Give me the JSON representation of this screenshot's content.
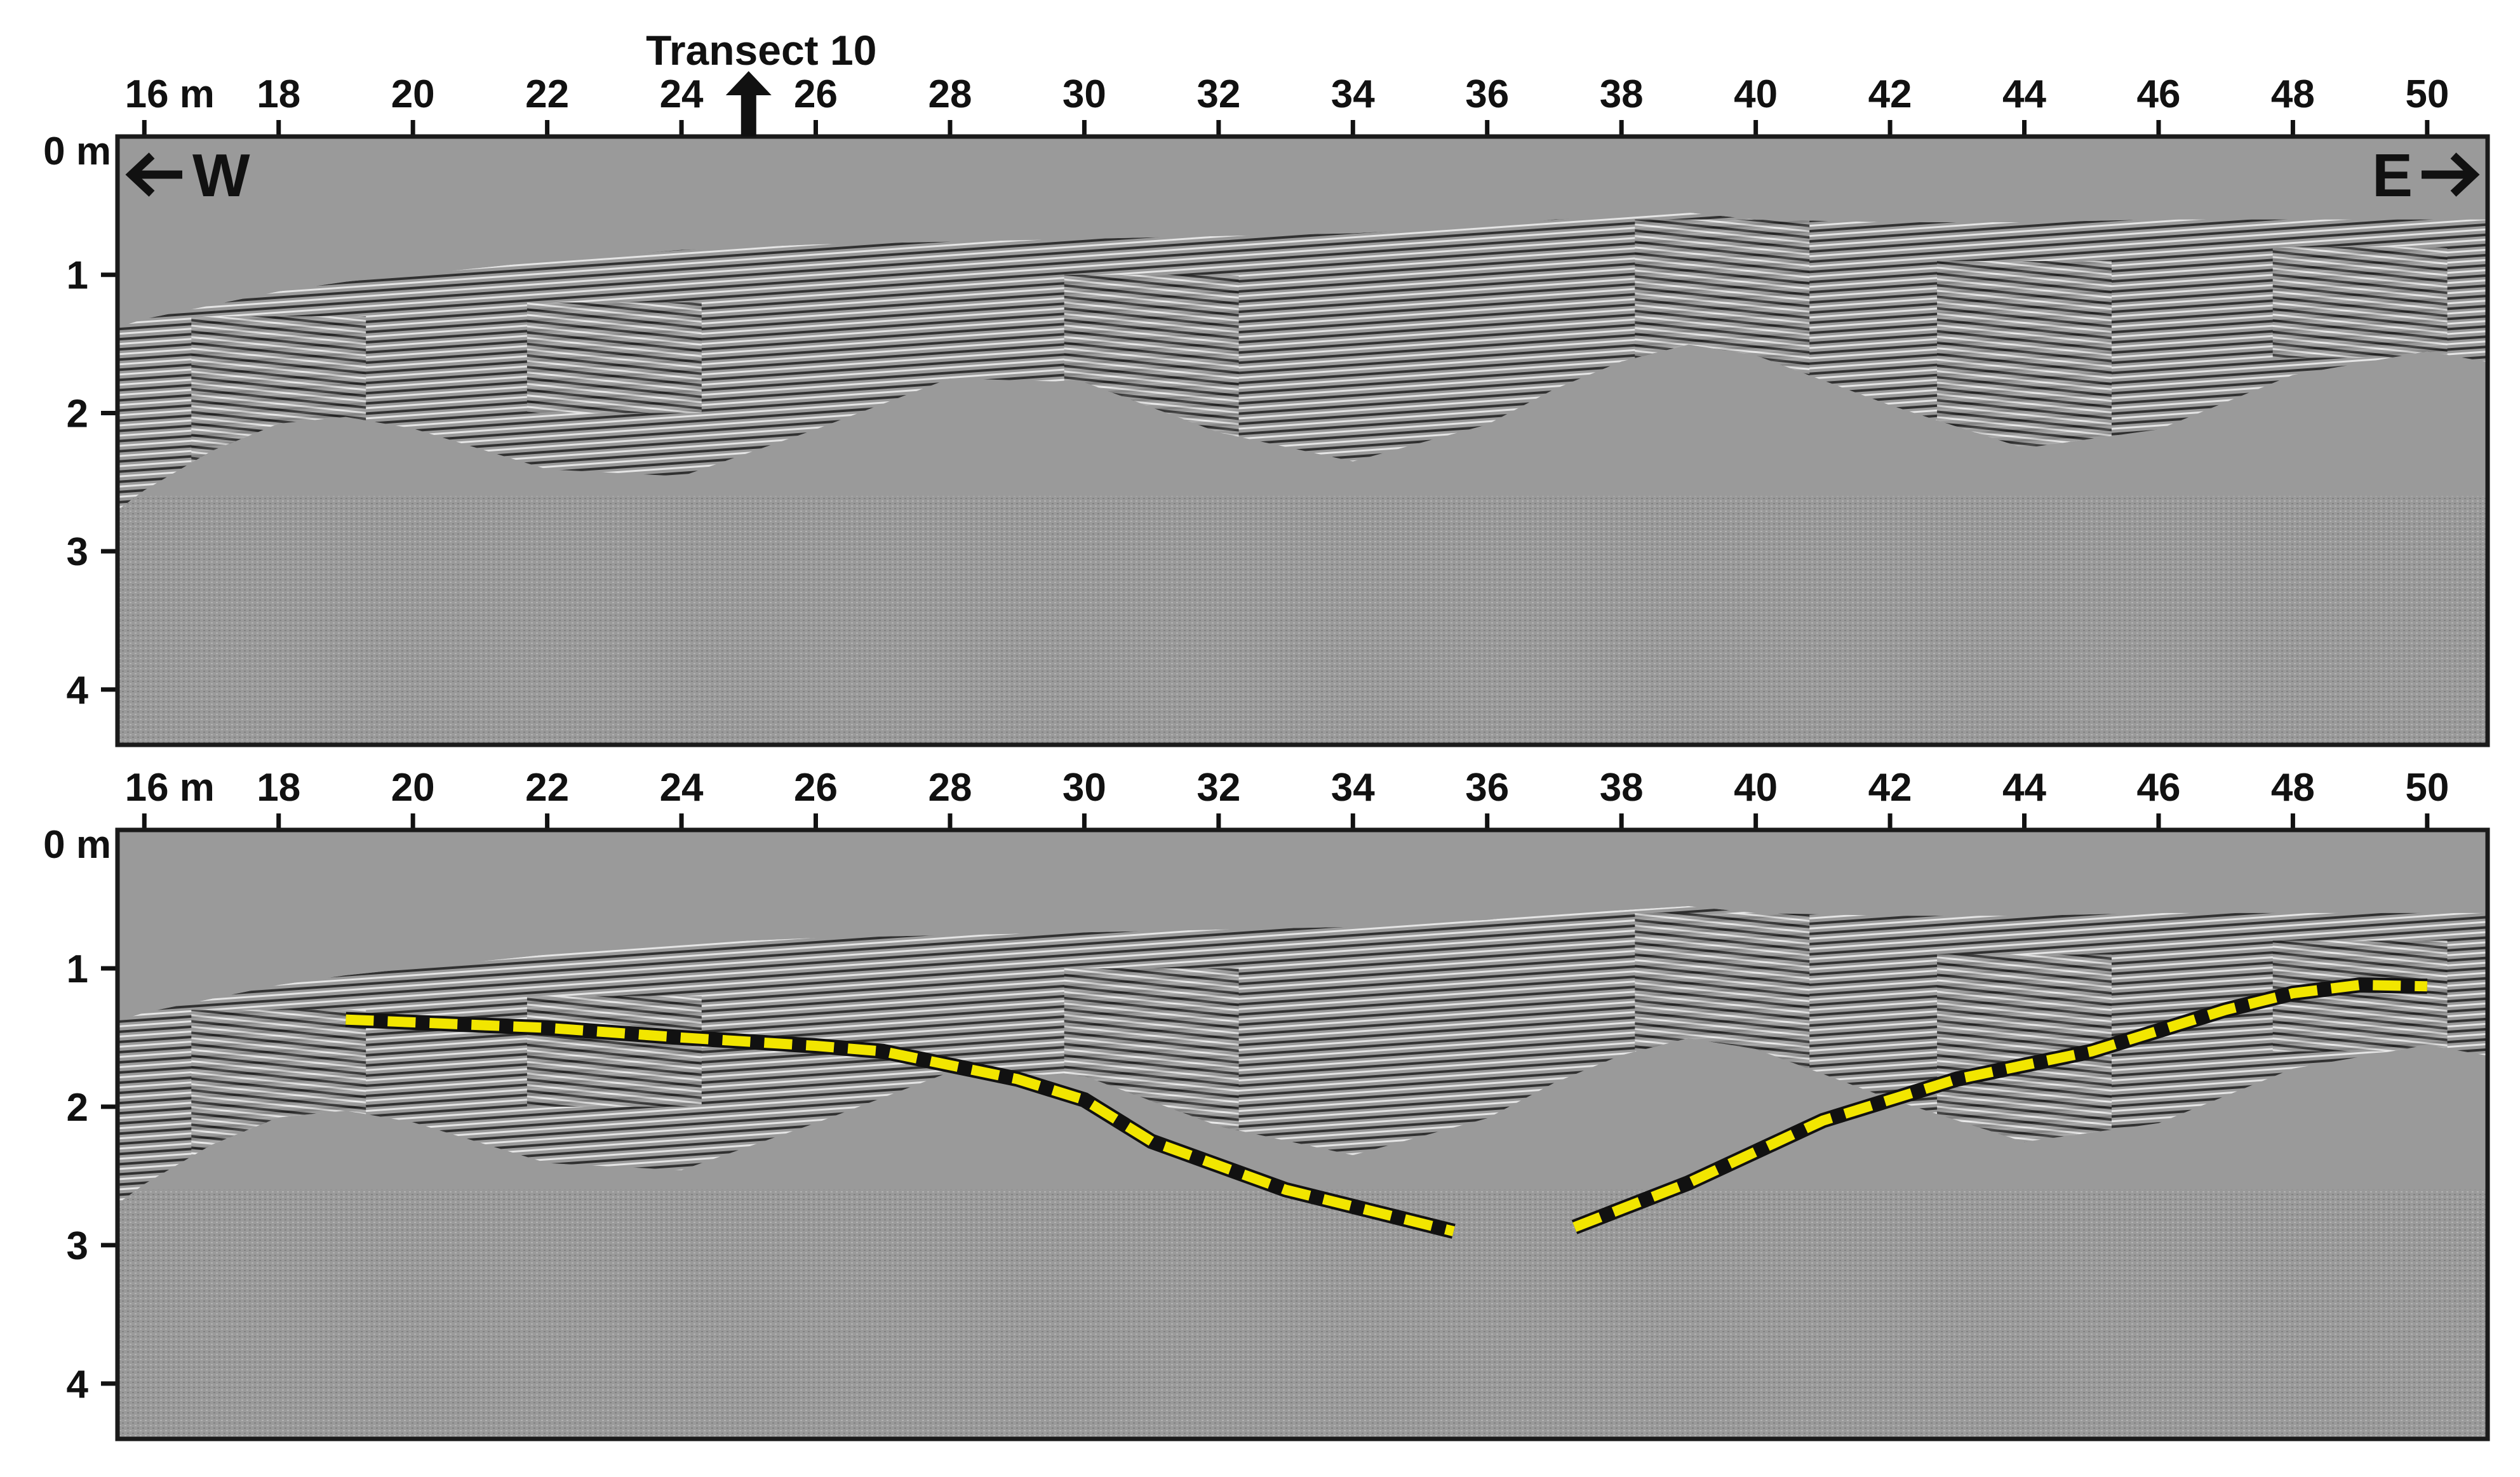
{
  "transect": {
    "label": "Transect 10",
    "position_m": 25
  },
  "directions": {
    "west": "W",
    "east": "E"
  },
  "x_axis": {
    "first_label": "16 m",
    "tick_values": [
      16,
      18,
      20,
      22,
      24,
      26,
      28,
      30,
      32,
      34,
      36,
      38,
      40,
      42,
      44,
      46,
      48,
      50
    ],
    "range_m": [
      15.6,
      50.9
    ]
  },
  "y_axis": {
    "first_label": "0 m",
    "tick_values": [
      0,
      1,
      2,
      3,
      4
    ],
    "range_m": [
      0,
      4.4
    ]
  },
  "colors": {
    "background": "#9a9a9a",
    "interpretation_line": "#f2e600",
    "frame": "#1a1a1a"
  },
  "surface_profile": {
    "x": [
      15.6,
      16,
      17,
      18,
      19,
      20,
      22,
      24,
      26,
      28,
      30,
      32,
      34,
      36,
      37,
      38,
      39,
      40,
      42,
      44,
      46,
      48,
      50,
      50.9
    ],
    "depth": [
      1.38,
      1.32,
      1.22,
      1.12,
      1.05,
      1.0,
      0.9,
      0.82,
      0.78,
      0.76,
      0.74,
      0.72,
      0.7,
      0.65,
      0.6,
      0.58,
      0.55,
      0.6,
      0.62,
      0.62,
      0.6,
      0.6,
      0.6,
      0.6
    ]
  },
  "interpretation": {
    "description_color": "yellow",
    "west_segment": {
      "x": [
        19,
        22,
        24,
        26,
        27,
        29,
        30,
        31,
        33,
        35.5
      ],
      "depth": [
        1.37,
        1.43,
        1.5,
        1.56,
        1.6,
        1.8,
        1.95,
        2.25,
        2.6,
        2.9
      ]
    },
    "east_segment": {
      "x": [
        37.3,
        39,
        41,
        43,
        45,
        46,
        47,
        48,
        49,
        50
      ],
      "depth": [
        2.87,
        2.55,
        2.1,
        1.8,
        1.6,
        1.45,
        1.3,
        1.18,
        1.12,
        1.13
      ]
    }
  }
}
